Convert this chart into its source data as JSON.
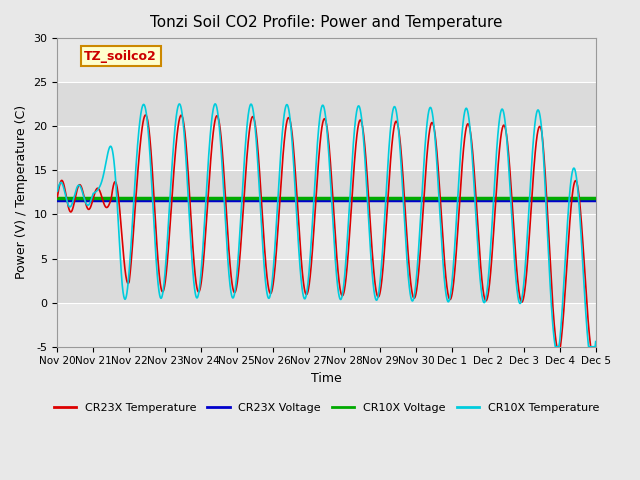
{
  "title": "Tonzi Soil CO2 Profile: Power and Temperature",
  "xlabel": "Time",
  "ylabel": "Power (V) / Temperature (C)",
  "ylim": [
    -5,
    30
  ],
  "cr23x_voltage": 11.6,
  "cr10x_voltage": 11.85,
  "cr23x_color": "#dd0000",
  "cr23x_voltage_color": "#0000cc",
  "cr10x_voltage_color": "#00aa00",
  "cr10x_color": "#00ccdd",
  "bg_color": "#e8e8e8",
  "plot_bg_color": "#e8e8e8",
  "label_box_color": "#ffffcc",
  "label_box_border": "#cc8800",
  "label_text": "TZ_soilco2",
  "legend_labels": [
    "CR23X Temperature",
    "CR23X Voltage",
    "CR10X Voltage",
    "CR10X Temperature"
  ],
  "xtick_labels": [
    "Nov 20",
    "Nov 21",
    "Nov 22",
    "Nov 23",
    "Nov 24",
    "Nov 25",
    "Nov 26",
    "Nov 27",
    "Nov 28",
    "Nov 29",
    "Nov 30",
    "Dec 1",
    "Dec 2",
    "Dec 3",
    "Dec 4",
    "Dec 5"
  ],
  "n_points": 3000
}
